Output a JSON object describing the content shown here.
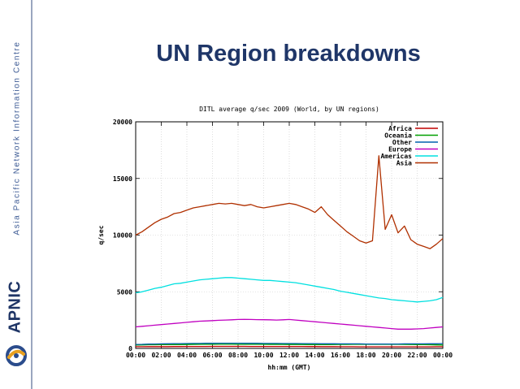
{
  "sidebar": {
    "org_name": "Asia Pacific Network Information Centre",
    "brand_name": "APNIC",
    "logo_icon": "apnic-swirl-logo-icon"
  },
  "slide": {
    "title": "UN Region breakdowns"
  },
  "colors": {
    "title": "#1f3668",
    "Africa": "#c00000",
    "Oceania": "#00a000",
    "Other": "#0060ad",
    "Europe": "#c000c0",
    "Americas": "#00e0e0",
    "Asia": "#b03000"
  },
  "chart_data": {
    "type": "line",
    "title": "DITL average q/sec 2009 (World, by UN regions)",
    "xlabel": "hh:mm (GMT)",
    "ylabel": "q/sec",
    "xlim": [
      0,
      24
    ],
    "ylim": [
      0,
      20000
    ],
    "xticks": [
      "00:00",
      "02:00",
      "04:00",
      "06:00",
      "08:00",
      "10:00",
      "12:00",
      "14:00",
      "16:00",
      "18:00",
      "20:00",
      "22:00",
      "00:00"
    ],
    "yticks": [
      0,
      5000,
      10000,
      15000,
      20000
    ],
    "legend_position": "top-right",
    "grid": true,
    "x": [
      0,
      0.5,
      1,
      1.5,
      2,
      2.5,
      3,
      3.5,
      4,
      4.5,
      5,
      5.5,
      6,
      6.5,
      7,
      7.5,
      8,
      8.5,
      9,
      9.5,
      10,
      10.5,
      11,
      11.5,
      12,
      12.5,
      13,
      13.5,
      14,
      14.5,
      15,
      15.5,
      16,
      16.5,
      17,
      17.5,
      18,
      18.5,
      19,
      19.5,
      20,
      20.5,
      21,
      21.5,
      22,
      22.5,
      23,
      23.5,
      24
    ],
    "series": [
      {
        "name": "Africa",
        "values": [
          150,
          150,
          155,
          155,
          160,
          160,
          165,
          165,
          170,
          170,
          175,
          175,
          180,
          180,
          180,
          180,
          180,
          180,
          175,
          175,
          175,
          175,
          170,
          170,
          170,
          170,
          170,
          165,
          165,
          160,
          160,
          155,
          150,
          150,
          150,
          145,
          145,
          145,
          145,
          145,
          145,
          145,
          145,
          145,
          145,
          145,
          145,
          150,
          150
        ]
      },
      {
        "name": "Oceania",
        "values": [
          300,
          310,
          320,
          320,
          330,
          330,
          340,
          340,
          345,
          350,
          355,
          360,
          360,
          365,
          365,
          365,
          360,
          360,
          360,
          355,
          355,
          350,
          350,
          350,
          345,
          345,
          345,
          340,
          340,
          340,
          340,
          345,
          350,
          350,
          355,
          355,
          355,
          355,
          355,
          360,
          360,
          355,
          350,
          345,
          340,
          330,
          320,
          310,
          300
        ]
      },
      {
        "name": "Other",
        "values": [
          350,
          360,
          380,
          390,
          400,
          410,
          420,
          420,
          430,
          440,
          440,
          450,
          450,
          460,
          460,
          460,
          460,
          450,
          450,
          450,
          440,
          440,
          440,
          430,
          430,
          430,
          420,
          420,
          420,
          410,
          410,
          410,
          400,
          400,
          400,
          400,
          390,
          390,
          390,
          390,
          390,
          390,
          400,
          400,
          400,
          400,
          410,
          410,
          420
        ]
      },
      {
        "name": "Europe",
        "values": [
          1900,
          1950,
          2000,
          2050,
          2100,
          2150,
          2200,
          2250,
          2300,
          2350,
          2400,
          2420,
          2450,
          2480,
          2500,
          2520,
          2550,
          2560,
          2550,
          2540,
          2530,
          2520,
          2500,
          2520,
          2550,
          2500,
          2450,
          2400,
          2350,
          2300,
          2250,
          2200,
          2150,
          2100,
          2050,
          2000,
          1950,
          1900,
          1850,
          1800,
          1750,
          1700,
          1700,
          1700,
          1720,
          1750,
          1800,
          1850,
          1900
        ]
      },
      {
        "name": "Americas",
        "values": [
          4900,
          5000,
          5150,
          5300,
          5400,
          5550,
          5700,
          5750,
          5850,
          5950,
          6050,
          6100,
          6150,
          6200,
          6250,
          6250,
          6200,
          6150,
          6100,
          6050,
          6000,
          6000,
          5950,
          5900,
          5850,
          5800,
          5700,
          5600,
          5500,
          5400,
          5300,
          5200,
          5050,
          4950,
          4850,
          4750,
          4650,
          4550,
          4450,
          4400,
          4300,
          4250,
          4200,
          4150,
          4100,
          4150,
          4200,
          4300,
          4500
        ]
      },
      {
        "name": "Asia",
        "values": [
          10000,
          10300,
          10700,
          11100,
          11400,
          11600,
          11900,
          12000,
          12200,
          12400,
          12500,
          12600,
          12700,
          12800,
          12750,
          12800,
          12700,
          12600,
          12700,
          12500,
          12400,
          12500,
          12600,
          12700,
          12800,
          12700,
          12500,
          12300,
          12000,
          12500,
          11800,
          11300,
          10800,
          10300,
          9900,
          9500,
          9300,
          9500,
          17000,
          10500,
          11800,
          10200,
          10800,
          9600,
          9200,
          9000,
          8800,
          9200,
          9700
        ]
      }
    ]
  }
}
